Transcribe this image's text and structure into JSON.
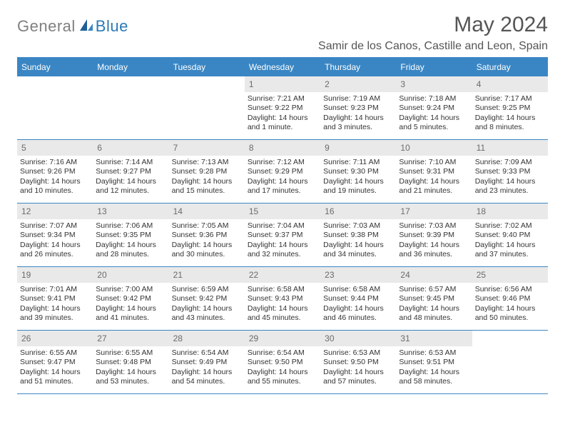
{
  "brand": {
    "gray": "General",
    "blue": "Blue"
  },
  "title": "May 2024",
  "location": "Samir de los Canos, Castille and Leon, Spain",
  "colors": {
    "header_bar": "#3a86c4",
    "daynum_bg": "#e9e9e9",
    "text": "#333333",
    "muted": "#6b6b6b",
    "title": "#555555",
    "logo_gray": "#808080",
    "logo_blue": "#2a7ab8",
    "background": "#ffffff"
  },
  "dow": [
    "Sunday",
    "Monday",
    "Tuesday",
    "Wednesday",
    "Thursday",
    "Friday",
    "Saturday"
  ],
  "weeks": [
    [
      {
        "n": "",
        "sr": "",
        "ss": "",
        "dl": ""
      },
      {
        "n": "",
        "sr": "",
        "ss": "",
        "dl": ""
      },
      {
        "n": "",
        "sr": "",
        "ss": "",
        "dl": ""
      },
      {
        "n": "1",
        "sr": "Sunrise: 7:21 AM",
        "ss": "Sunset: 9:22 PM",
        "dl": "Daylight: 14 hours and 1 minute."
      },
      {
        "n": "2",
        "sr": "Sunrise: 7:19 AM",
        "ss": "Sunset: 9:23 PM",
        "dl": "Daylight: 14 hours and 3 minutes."
      },
      {
        "n": "3",
        "sr": "Sunrise: 7:18 AM",
        "ss": "Sunset: 9:24 PM",
        "dl": "Daylight: 14 hours and 5 minutes."
      },
      {
        "n": "4",
        "sr": "Sunrise: 7:17 AM",
        "ss": "Sunset: 9:25 PM",
        "dl": "Daylight: 14 hours and 8 minutes."
      }
    ],
    [
      {
        "n": "5",
        "sr": "Sunrise: 7:16 AM",
        "ss": "Sunset: 9:26 PM",
        "dl": "Daylight: 14 hours and 10 minutes."
      },
      {
        "n": "6",
        "sr": "Sunrise: 7:14 AM",
        "ss": "Sunset: 9:27 PM",
        "dl": "Daylight: 14 hours and 12 minutes."
      },
      {
        "n": "7",
        "sr": "Sunrise: 7:13 AM",
        "ss": "Sunset: 9:28 PM",
        "dl": "Daylight: 14 hours and 15 minutes."
      },
      {
        "n": "8",
        "sr": "Sunrise: 7:12 AM",
        "ss": "Sunset: 9:29 PM",
        "dl": "Daylight: 14 hours and 17 minutes."
      },
      {
        "n": "9",
        "sr": "Sunrise: 7:11 AM",
        "ss": "Sunset: 9:30 PM",
        "dl": "Daylight: 14 hours and 19 minutes."
      },
      {
        "n": "10",
        "sr": "Sunrise: 7:10 AM",
        "ss": "Sunset: 9:31 PM",
        "dl": "Daylight: 14 hours and 21 minutes."
      },
      {
        "n": "11",
        "sr": "Sunrise: 7:09 AM",
        "ss": "Sunset: 9:33 PM",
        "dl": "Daylight: 14 hours and 23 minutes."
      }
    ],
    [
      {
        "n": "12",
        "sr": "Sunrise: 7:07 AM",
        "ss": "Sunset: 9:34 PM",
        "dl": "Daylight: 14 hours and 26 minutes."
      },
      {
        "n": "13",
        "sr": "Sunrise: 7:06 AM",
        "ss": "Sunset: 9:35 PM",
        "dl": "Daylight: 14 hours and 28 minutes."
      },
      {
        "n": "14",
        "sr": "Sunrise: 7:05 AM",
        "ss": "Sunset: 9:36 PM",
        "dl": "Daylight: 14 hours and 30 minutes."
      },
      {
        "n": "15",
        "sr": "Sunrise: 7:04 AM",
        "ss": "Sunset: 9:37 PM",
        "dl": "Daylight: 14 hours and 32 minutes."
      },
      {
        "n": "16",
        "sr": "Sunrise: 7:03 AM",
        "ss": "Sunset: 9:38 PM",
        "dl": "Daylight: 14 hours and 34 minutes."
      },
      {
        "n": "17",
        "sr": "Sunrise: 7:03 AM",
        "ss": "Sunset: 9:39 PM",
        "dl": "Daylight: 14 hours and 36 minutes."
      },
      {
        "n": "18",
        "sr": "Sunrise: 7:02 AM",
        "ss": "Sunset: 9:40 PM",
        "dl": "Daylight: 14 hours and 37 minutes."
      }
    ],
    [
      {
        "n": "19",
        "sr": "Sunrise: 7:01 AM",
        "ss": "Sunset: 9:41 PM",
        "dl": "Daylight: 14 hours and 39 minutes."
      },
      {
        "n": "20",
        "sr": "Sunrise: 7:00 AM",
        "ss": "Sunset: 9:42 PM",
        "dl": "Daylight: 14 hours and 41 minutes."
      },
      {
        "n": "21",
        "sr": "Sunrise: 6:59 AM",
        "ss": "Sunset: 9:42 PM",
        "dl": "Daylight: 14 hours and 43 minutes."
      },
      {
        "n": "22",
        "sr": "Sunrise: 6:58 AM",
        "ss": "Sunset: 9:43 PM",
        "dl": "Daylight: 14 hours and 45 minutes."
      },
      {
        "n": "23",
        "sr": "Sunrise: 6:58 AM",
        "ss": "Sunset: 9:44 PM",
        "dl": "Daylight: 14 hours and 46 minutes."
      },
      {
        "n": "24",
        "sr": "Sunrise: 6:57 AM",
        "ss": "Sunset: 9:45 PM",
        "dl": "Daylight: 14 hours and 48 minutes."
      },
      {
        "n": "25",
        "sr": "Sunrise: 6:56 AM",
        "ss": "Sunset: 9:46 PM",
        "dl": "Daylight: 14 hours and 50 minutes."
      }
    ],
    [
      {
        "n": "26",
        "sr": "Sunrise: 6:55 AM",
        "ss": "Sunset: 9:47 PM",
        "dl": "Daylight: 14 hours and 51 minutes."
      },
      {
        "n": "27",
        "sr": "Sunrise: 6:55 AM",
        "ss": "Sunset: 9:48 PM",
        "dl": "Daylight: 14 hours and 53 minutes."
      },
      {
        "n": "28",
        "sr": "Sunrise: 6:54 AM",
        "ss": "Sunset: 9:49 PM",
        "dl": "Daylight: 14 hours and 54 minutes."
      },
      {
        "n": "29",
        "sr": "Sunrise: 6:54 AM",
        "ss": "Sunset: 9:50 PM",
        "dl": "Daylight: 14 hours and 55 minutes."
      },
      {
        "n": "30",
        "sr": "Sunrise: 6:53 AM",
        "ss": "Sunset: 9:50 PM",
        "dl": "Daylight: 14 hours and 57 minutes."
      },
      {
        "n": "31",
        "sr": "Sunrise: 6:53 AM",
        "ss": "Sunset: 9:51 PM",
        "dl": "Daylight: 14 hours and 58 minutes."
      },
      {
        "n": "",
        "sr": "",
        "ss": "",
        "dl": ""
      }
    ]
  ]
}
